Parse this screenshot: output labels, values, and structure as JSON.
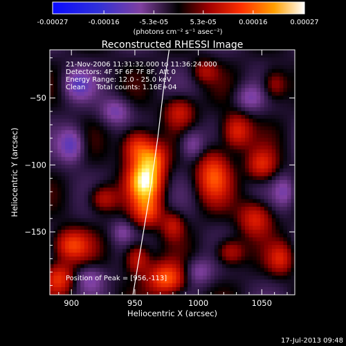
{
  "chart_data": {
    "type": "heatmap",
    "title": "Reconstructed RHESSI Image",
    "xlabel": "Heliocentric X (arcsec)",
    "ylabel": "Heliocentric Y (arcsec)",
    "xlim": [
      883,
      1076
    ],
    "ylim": [
      -197,
      -14
    ],
    "x_ticks": [
      900,
      950,
      1000,
      1050
    ],
    "y_ticks": [
      -150,
      -100,
      -50
    ],
    "colorbar": {
      "range": [
        -0.00027,
        0.00027
      ],
      "tick_values": [
        -0.00027,
        -0.00016,
        -5.3e-05,
        5.3e-05,
        0.00016,
        0.00027
      ],
      "tick_labels": [
        "-0.00027",
        "-0.00016",
        "-5.3e-05",
        "5.3e-05",
        "0.00016",
        "0.00027"
      ],
      "unit_label": "(photons cm⁻² s⁻¹ asec⁻²)"
    },
    "info_lines": [
      "21-Nov-2006 11:31:32.000 to 11:36:24.000",
      "Detectors: 4F 5F 6F 7F 8F, Att 0",
      "Energy Range: 12.0 - 25.0 keV",
      "Clean     Total counts: 1.16E+04"
    ],
    "peak_label": "Position of Peak = [956,-113]",
    "peak": [
      956,
      -113
    ],
    "limb_curve": [
      [
        948.5,
        -197
      ],
      [
        955,
        -160
      ],
      [
        962,
        -120
      ],
      [
        968,
        -80
      ],
      [
        973,
        -40
      ],
      [
        977,
        -14
      ]
    ],
    "sources": [
      {
        "x": 958,
        "y": -112,
        "amp": 1.0,
        "sx": 9,
        "sy": 11
      },
      {
        "x": 952,
        "y": -87,
        "amp": 0.55,
        "sx": 8,
        "sy": 9
      },
      {
        "x": 965,
        "y": -95,
        "amp": 0.45,
        "sx": 7,
        "sy": 8
      },
      {
        "x": 960,
        "y": -135,
        "amp": 0.45,
        "sx": 8,
        "sy": 8
      },
      {
        "x": 975,
        "y": -185,
        "amp": 0.6,
        "sx": 10,
        "sy": 8
      },
      {
        "x": 952,
        "y": -170,
        "amp": 0.4,
        "sx": 7,
        "sy": 8
      },
      {
        "x": 980,
        "y": -145,
        "amp": 0.3,
        "sx": 6,
        "sy": 7
      },
      {
        "x": 1012,
        "y": -108,
        "amp": 0.55,
        "sx": 9,
        "sy": 13
      },
      {
        "x": 1030,
        "y": -75,
        "amp": 0.45,
        "sx": 8,
        "sy": 9
      },
      {
        "x": 1050,
        "y": -100,
        "amp": 0.4,
        "sx": 8,
        "sy": 8
      },
      {
        "x": 1045,
        "y": -140,
        "amp": 0.4,
        "sx": 9,
        "sy": 9
      },
      {
        "x": 1025,
        "y": -165,
        "amp": 0.35,
        "sx": 8,
        "sy": 7
      },
      {
        "x": 1065,
        "y": -170,
        "amp": 0.35,
        "sx": 7,
        "sy": 8
      },
      {
        "x": 900,
        "y": -160,
        "amp": 0.5,
        "sx": 10,
        "sy": 8
      },
      {
        "x": 890,
        "y": -185,
        "amp": 0.45,
        "sx": 8,
        "sy": 8
      },
      {
        "x": 925,
        "y": -125,
        "amp": 0.35,
        "sx": 8,
        "sy": 7
      },
      {
        "x": 985,
        "y": -60,
        "amp": 0.35,
        "sx": 8,
        "sy": 8
      },
      {
        "x": 1060,
        "y": -40,
        "amp": 0.3,
        "sx": 7,
        "sy": 8
      },
      {
        "x": 1005,
        "y": -30,
        "amp": 0.25,
        "sx": 7,
        "sy": 6
      },
      {
        "x": 905,
        "y": -40,
        "amp": -0.35,
        "sx": 8,
        "sy": 8
      },
      {
        "x": 900,
        "y": -85,
        "amp": -0.4,
        "sx": 7,
        "sy": 9
      },
      {
        "x": 935,
        "y": -60,
        "amp": -0.3,
        "sx": 8,
        "sy": 7
      },
      {
        "x": 995,
        "y": -85,
        "amp": -0.3,
        "sx": 7,
        "sy": 8
      },
      {
        "x": 1040,
        "y": -50,
        "amp": -0.25,
        "sx": 8,
        "sy": 7
      },
      {
        "x": 915,
        "y": -185,
        "amp": -0.25,
        "sx": 8,
        "sy": 7
      },
      {
        "x": 1000,
        "y": -180,
        "amp": -0.25,
        "sx": 8,
        "sy": 7
      },
      {
        "x": 1068,
        "y": -120,
        "amp": -0.25,
        "sx": 6,
        "sy": 8
      },
      {
        "x": 940,
        "y": -150,
        "amp": -0.2,
        "sx": 6,
        "sy": 6
      }
    ]
  },
  "footer": {
    "timestamp": "17-Jul-2013 09:48"
  }
}
